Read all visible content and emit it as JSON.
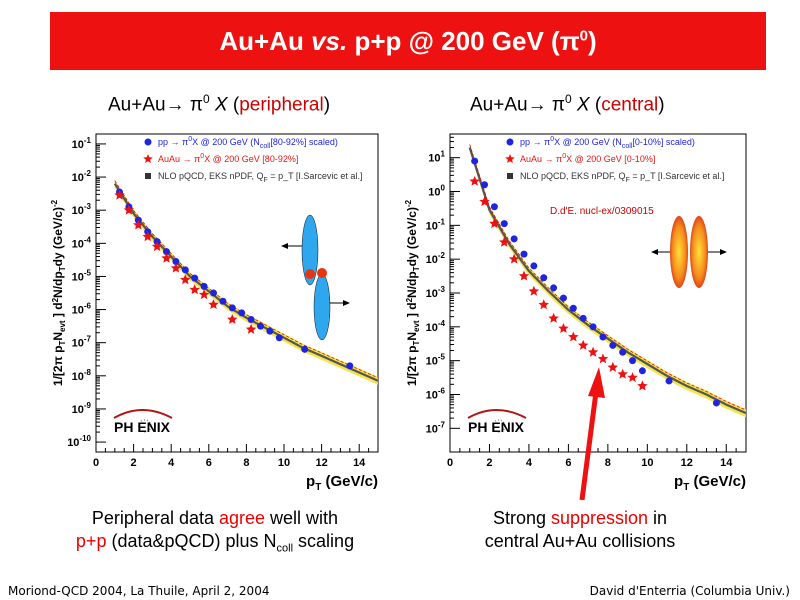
{
  "slide": {
    "title_pre": "Au+Au ",
    "title_vs": "vs.",
    "title_post": " p+p @ 200 GeV (π",
    "title_sup": "0",
    "title_end": ")",
    "footer_left": "Moriond-QCD 2004, La Thuile, April 2, 2004",
    "footer_right": "David d'Enterria (Columbia Univ.)"
  },
  "left_panel": {
    "heading_pre": "Au+Au→ π",
    "heading_sup": "0",
    "heading_x": " X ",
    "heading_open": "(",
    "heading_hl": "peripheral",
    "heading_close": ")",
    "caption_line1_a": "Peripheral data ",
    "caption_line1_red": "agree",
    "caption_line1_b": " well with",
    "caption_line2_red": "p+p",
    "caption_line2_a": " (data&pQCD) plus N",
    "caption_line2_sub": "coll",
    "caption_line2_b": " scaling"
  },
  "right_panel": {
    "heading_pre": "Au+Au→ π",
    "heading_sup": "0",
    "heading_x": " X ",
    "heading_open": "(",
    "heading_hl": "central",
    "heading_close": ")",
    "caption_line1_a": "Strong ",
    "caption_line1_red": "suppression",
    "caption_line1_b": " in",
    "caption_line2": "central Au+Au collisions"
  },
  "chart_data": [
    {
      "type": "scatter",
      "xlabel": "p_T (GeV/c)",
      "ylabel": "1/[2π p_T N_evt ] d²N/dp_Tdy (GeV/c)⁻²",
      "xlim": [
        0,
        15
      ],
      "ylim_log10": [
        -10.3,
        -0.7
      ],
      "y_scale": "log",
      "xticks": [
        0,
        2,
        4,
        6,
        8,
        10,
        12,
        14
      ],
      "yticks_exp": [
        -10,
        -9,
        -8,
        -7,
        -6,
        -5,
        -4,
        -3,
        -2,
        -1
      ],
      "ytick_base": "10",
      "legend": [
        {
          "label_a": "pp → π",
          "label_sup": "0",
          "label_b": "X @ 200 GeV (N",
          "label_sub": "coll",
          "label_c": "[80-92%] scaled)",
          "marker": "circle",
          "color": "#1f24e0"
        },
        {
          "label_a": "AuAu → π",
          "label_sup": "0",
          "label_b": "X @ 200 GeV [80-92%]",
          "label_sub": "",
          "label_c": "",
          "marker": "star",
          "color": "#ee1111"
        },
        {
          "label_a": "NLO pQCD, EKS nPDF, Q",
          "label_sup": "",
          "label_b": "",
          "label_sub": "F",
          "label_c": " = p_T [I.Sarcevic et al.]",
          "marker": "square",
          "color": "#333333"
        }
      ],
      "series": [
        {
          "name": "pp → π0 X @ 200 GeV (Ncoll[80-92%] scaled)",
          "marker": "circle",
          "x": [
            1.25,
            1.75,
            2.25,
            2.75,
            3.25,
            3.75,
            4.25,
            4.75,
            5.25,
            5.75,
            6.25,
            6.75,
            7.25,
            7.75,
            8.25,
            8.75,
            9.25,
            9.75,
            11.1,
            13.5
          ],
          "log10y": [
            -2.45,
            -2.9,
            -3.3,
            -3.65,
            -3.95,
            -4.25,
            -4.55,
            -4.8,
            -5.05,
            -5.3,
            -5.5,
            -5.75,
            -5.95,
            -6.1,
            -6.3,
            -6.5,
            -6.65,
            -6.85,
            -7.2,
            -7.7
          ]
        },
        {
          "name": "AuAu → π0 X @ 200 GeV [80-92%]",
          "marker": "star",
          "x": [
            1.25,
            1.75,
            2.25,
            2.75,
            3.25,
            3.75,
            4.25,
            4.75,
            5.25,
            5.75,
            6.25,
            7.25,
            8.25
          ],
          "log10y": [
            -2.55,
            -3.0,
            -3.45,
            -3.8,
            -4.1,
            -4.45,
            -4.75,
            -5.1,
            -5.4,
            -5.55,
            -5.85,
            -6.3,
            -6.6
          ]
        }
      ],
      "theory_band": {
        "x": [
          1.0,
          2,
          3,
          4,
          5,
          6,
          7,
          8,
          9,
          10,
          11,
          12,
          13,
          14,
          15
        ],
        "log10y": [
          -2.2,
          -3.1,
          -3.8,
          -4.4,
          -5.0,
          -5.45,
          -5.9,
          -6.25,
          -6.55,
          -6.85,
          -7.15,
          -7.4,
          -7.65,
          -7.9,
          -8.15
        ]
      },
      "logo_text": "PH  ENIX"
    },
    {
      "type": "scatter",
      "xlabel": "p_T (GeV/c)",
      "ylabel": "1/[2π p_T N_evt ] d²N/dp_Tdy (GeV/c)⁻²",
      "xlim": [
        0,
        15
      ],
      "ylim_log10": [
        -7.7,
        1.7
      ],
      "y_scale": "log",
      "xticks": [
        0,
        2,
        4,
        6,
        8,
        10,
        12,
        14
      ],
      "yticks_exp": [
        -7,
        -6,
        -5,
        -4,
        -3,
        -2,
        -1,
        0,
        1
      ],
      "ytick_base": "10",
      "legend": [
        {
          "label_a": "pp → π",
          "label_sup": "0",
          "label_b": "X @ 200 GeV (N",
          "label_sub": "coll",
          "label_c": "[0-10%] scaled)",
          "marker": "circle",
          "color": "#1f24e0"
        },
        {
          "label_a": "AuAu → π",
          "label_sup": "0",
          "label_b": "X @ 200 GeV [0-10%]",
          "label_sub": "",
          "label_c": "",
          "marker": "star",
          "color": "#ee1111"
        },
        {
          "label_a": "NLO pQCD, EKS nPDF, Q",
          "label_sup": "",
          "label_b": "",
          "label_sub": "F",
          "label_c": " = p_T [I.Sarcevic et al.]",
          "marker": "square",
          "color": "#333333"
        }
      ],
      "annotation": "D.d'E. nucl-ex/0309015",
      "series": [
        {
          "name": "pp → π0 X @ 200 GeV (Ncoll[0-10%] scaled)",
          "marker": "circle",
          "x": [
            1.25,
            1.75,
            2.25,
            2.75,
            3.25,
            3.75,
            4.25,
            4.75,
            5.25,
            5.75,
            6.25,
            6.75,
            7.25,
            7.75,
            8.25,
            8.75,
            9.25,
            9.75,
            11.1,
            13.5
          ],
          "log10y": [
            0.9,
            0.2,
            -0.45,
            -0.95,
            -1.4,
            -1.85,
            -2.2,
            -2.55,
            -2.85,
            -3.15,
            -3.45,
            -3.75,
            -4.0,
            -4.3,
            -4.55,
            -4.75,
            -5.0,
            -5.3,
            -5.6,
            -6.25
          ]
        },
        {
          "name": "AuAu → π0 X @ 200 GeV [0-10%]",
          "marker": "star",
          "x": [
            1.25,
            1.75,
            2.25,
            2.75,
            3.25,
            3.75,
            4.25,
            4.75,
            5.25,
            5.75,
            6.25,
            6.75,
            7.25,
            7.75,
            8.25,
            8.75,
            9.25,
            9.75
          ],
          "log10y": [
            0.3,
            -0.3,
            -0.95,
            -1.5,
            -2.0,
            -2.5,
            -2.95,
            -3.35,
            -3.75,
            -4.05,
            -4.3,
            -4.55,
            -4.75,
            -4.95,
            -5.2,
            -5.4,
            -5.5,
            -5.75
          ]
        }
      ],
      "theory_band": {
        "x": [
          1.0,
          2,
          3,
          4,
          5,
          6,
          7,
          8,
          9,
          10,
          11,
          12,
          13,
          14,
          15
        ],
        "log10y": [
          1.3,
          -0.55,
          -1.55,
          -2.35,
          -2.95,
          -3.5,
          -3.95,
          -4.35,
          -4.75,
          -5.1,
          -5.45,
          -5.75,
          -6.0,
          -6.3,
          -6.55
        ]
      },
      "logo_text": "PH  ENIX"
    }
  ]
}
